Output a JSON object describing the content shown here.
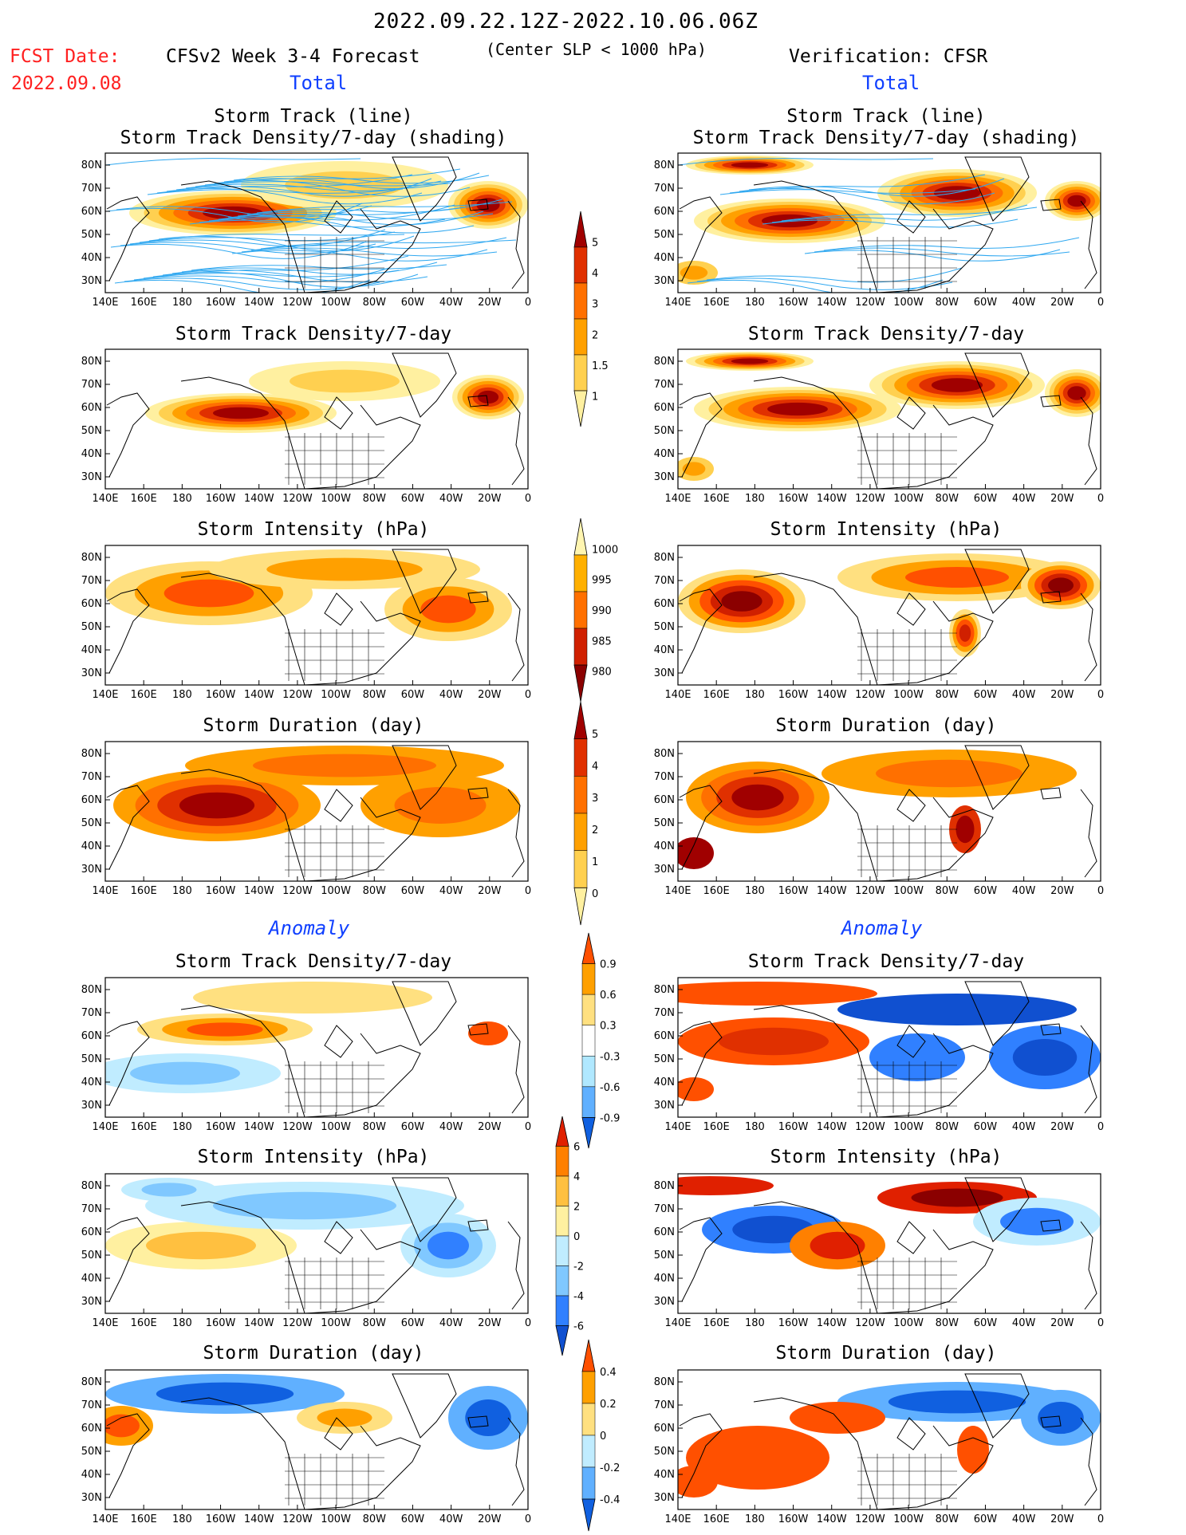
{
  "header": {
    "date_range": "2022.09.22.12Z-2022.10.06.06Z",
    "fcst_date_label": "FCST Date:",
    "fcst_date_value": "2022.09.08",
    "forecast_label": "CFSv2 Week 3-4 Forecast",
    "center_slp": "(Center SLP < 1000 hPa)",
    "verification": "Verification: CFSR"
  },
  "sections": {
    "total_left": "Total",
    "total_right": "Total",
    "anomaly_left": "Anomaly",
    "anomaly_right": "Anomaly"
  },
  "panel_titles": {
    "track_line": "Storm Track (line)",
    "track_shading": "Storm Track Density/7-day (shading)",
    "density": "Storm Track Density/7-day",
    "intensity": "Storm Intensity (hPa)",
    "duration": "Storm Duration (day)"
  },
  "axis": {
    "lat_labels": [
      "80N",
      "70N",
      "60N",
      "50N",
      "40N",
      "30N"
    ],
    "lon_labels": [
      "140E",
      "160E",
      "180",
      "160W",
      "140W",
      "120W",
      "100W",
      "80W",
      "60W",
      "40W",
      "20W",
      "0"
    ]
  },
  "colorbars": {
    "density_total": {
      "labels": [
        "5",
        "4",
        "3",
        "2",
        "1.5",
        "1"
      ],
      "colors": [
        "#a00000",
        "#e03000",
        "#ff7000",
        "#ffa000",
        "#ffd050",
        "#fff0a0"
      ]
    },
    "intensity_total": {
      "labels": [
        "1000",
        "995",
        "990",
        "985",
        "980"
      ],
      "colors": [
        "#fff5b0",
        "#ffb000",
        "#ff7000",
        "#d02000",
        "#8b0000"
      ]
    },
    "duration_total": {
      "labels": [
        "5",
        "4",
        "3",
        "2",
        "1",
        "0"
      ],
      "colors": [
        "#a00000",
        "#e03000",
        "#ff7000",
        "#ffa000",
        "#ffd050",
        "#fff0a0"
      ]
    },
    "density_anom": {
      "labels": [
        "0.9",
        "0.6",
        "0.3",
        "-0.3",
        "-0.6",
        "-0.9"
      ],
      "colors": [
        "#ff5000",
        "#ffa000",
        "#ffe080",
        "#ffffff",
        "#b0e8ff",
        "#60b0ff",
        "#1060e0"
      ]
    },
    "intensity_anom": {
      "labels": [
        "6",
        "4",
        "2",
        "0",
        "-2",
        "-4",
        "-6"
      ],
      "colors": [
        "#e02000",
        "#ff8000",
        "#ffc040",
        "#fff0a0",
        "#c0ecff",
        "#80c8ff",
        "#3080ff",
        "#1050d0"
      ]
    },
    "duration_anom": {
      "labels": [
        "0.4",
        "0.2",
        "0",
        "-0.2",
        "-0.4"
      ],
      "colors": [
        "#ff5000",
        "#ffa000",
        "#ffe080",
        "#c0ecff",
        "#60b0ff",
        "#1060e0"
      ]
    }
  }
}
